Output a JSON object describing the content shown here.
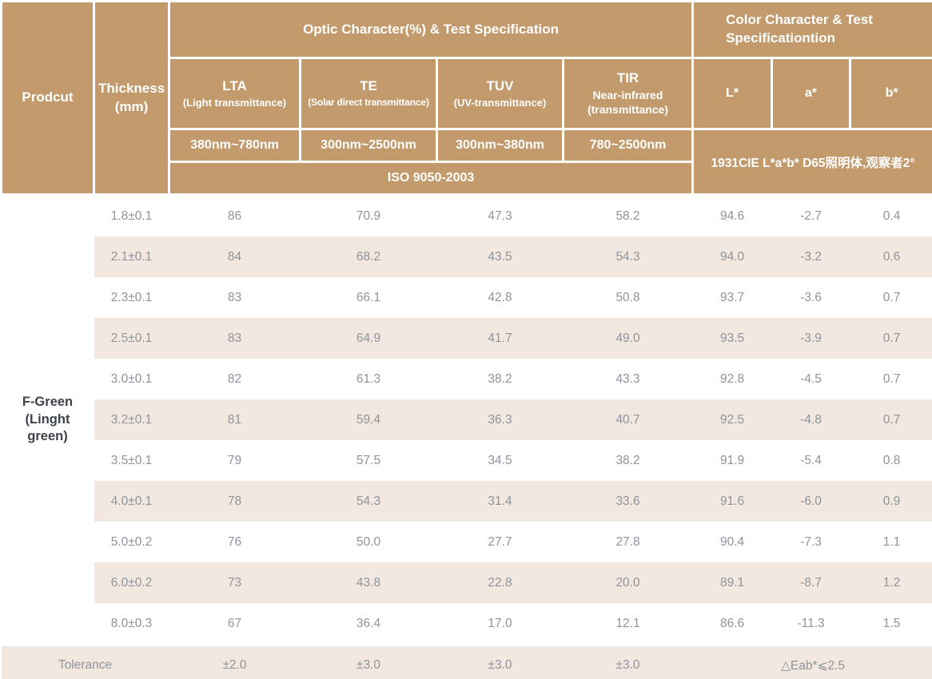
{
  "header": {
    "product_col": "Prodcut",
    "thickness_col": "Thickness (mm)",
    "optic_group": "Optic Character(%) & Test Specification",
    "color_group": "Color Character & Test Specificationtion",
    "optic_columns": [
      {
        "abbr": "LTA",
        "full": "(Light transmittance)",
        "range": "380nm~780nm"
      },
      {
        "abbr": "TE",
        "full": "(Solar direct transmittance)",
        "range": "300nm~2500nm"
      },
      {
        "abbr": "TUV",
        "full": "(UV-transmittance)",
        "range": "300nm~380nm"
      },
      {
        "abbr": "TIR",
        "full": "Near-infrared (transmittance)",
        "range": "780~2500nm"
      }
    ],
    "color_columns": [
      "L*",
      "a*",
      "b*"
    ],
    "optic_test_standard": "ISO 9050-2003",
    "color_test_standard": "1931CIE L*a*b*  D65照明体,观察者2°"
  },
  "product": {
    "name": "F-Green (Linght green)"
  },
  "chart_data": {
    "type": "table",
    "title": "Optic Character(%) & Test Specification / Color Character & Test Specificationtion",
    "columns": [
      "Thickness (mm)",
      "LTA (Light transmittance) 380nm~780nm",
      "TE (Solar direct transmittance) 300nm~2500nm",
      "TUV (UV-transmittance) 300nm~380nm",
      "TIR Near-infrared (transmittance) 780~2500nm",
      "L*",
      "a*",
      "b*"
    ],
    "rows": [
      [
        "1.8±0.1",
        "86",
        "70.9",
        "47.3",
        "58.2",
        "94.6",
        "-2.7",
        "0.4"
      ],
      [
        "2.1±0.1",
        "84",
        "68.2",
        "43.5",
        "54.3",
        "94.0",
        "-3.2",
        "0.6"
      ],
      [
        "2.3±0.1",
        "83",
        "66.1",
        "42.8",
        "50.8",
        "93.7",
        "-3.6",
        "0.7"
      ],
      [
        "2.5±0.1",
        "83",
        "64.9",
        "41.7",
        "49.0",
        "93.5",
        "-3.9",
        "0.7"
      ],
      [
        "3.0±0.1",
        "82",
        "61.3",
        "38.2",
        "43.3",
        "92.8",
        "-4.5",
        "0.7"
      ],
      [
        "3.2±0.1",
        "81",
        "59.4",
        "36.3",
        "40.7",
        "92.5",
        "-4.8",
        "0.7"
      ],
      [
        "3.5±0.1",
        "79",
        "57.5",
        "34.5",
        "38.2",
        "91.9",
        "-5.4",
        "0.8"
      ],
      [
        "4.0±0.1",
        "78",
        "54.3",
        "31.4",
        "33.6",
        "91.6",
        "-6.0",
        "0.9"
      ],
      [
        "5.0±0.2",
        "76",
        "50.0",
        "27.7",
        "27.8",
        "90.4",
        "-7.3",
        "1.1"
      ],
      [
        "6.0±0.2",
        "73",
        "43.8",
        "22.8",
        "20.0",
        "89.1",
        "-8.7",
        "1.2"
      ],
      [
        "8.0±0.3",
        "67",
        "36.4",
        "17.0",
        "12.1",
        "86.6",
        "-11.3",
        "1.5"
      ]
    ],
    "tolerance_row": [
      "Tolerance",
      "±2.0",
      "±3.0",
      "±3.0",
      "±3.0",
      "△Eab*⩽2.5"
    ]
  },
  "colors": {
    "header_bg": "#c29a6c",
    "stripe_bg": "#f2e8e0",
    "data_text": "#8e939c",
    "product_text": "#3e434a",
    "bottom_rule": "#ca9a60"
  }
}
